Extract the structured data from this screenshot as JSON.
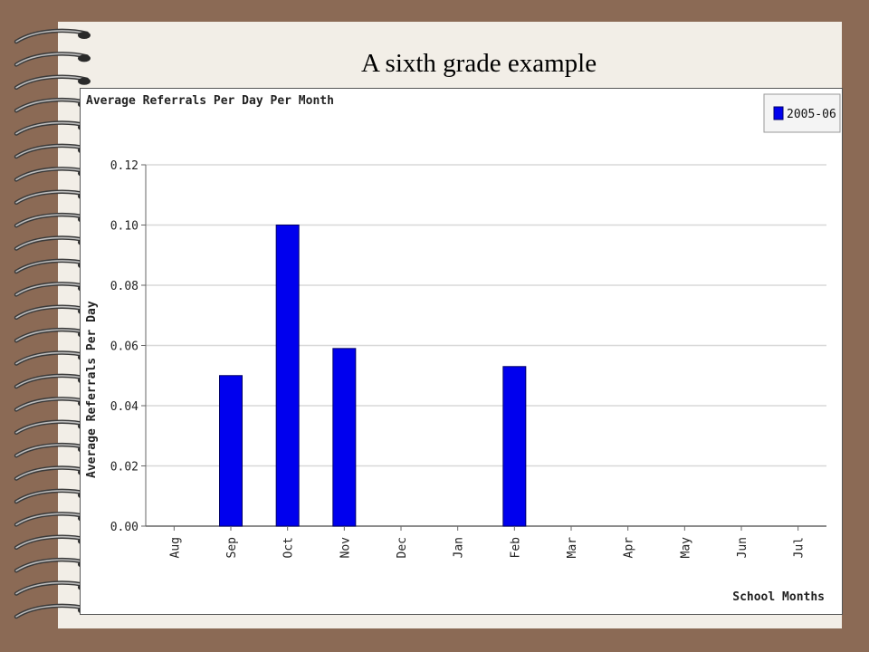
{
  "slide": {
    "title": "A sixth grade example"
  },
  "colors": {
    "bar": "#0000ee",
    "bar_stroke": "#000066",
    "grid": "#d8d8d8",
    "axis": "#666666"
  },
  "chart_data": {
    "type": "bar",
    "title": "Average Referrals Per Day Per Month",
    "xlabel": "School Months",
    "ylabel": "Average Referrals Per Day",
    "categories": [
      "Aug",
      "Sep",
      "Oct",
      "Nov",
      "Dec",
      "Jan",
      "Feb",
      "Mar",
      "Apr",
      "May",
      "Jun",
      "Jul"
    ],
    "series": [
      {
        "name": "2005-06",
        "values": [
          0,
          0.05,
          0.1,
          0.059,
          0,
          0,
          0.053,
          0,
          0,
          0,
          0,
          0
        ]
      }
    ],
    "ylim": [
      0,
      0.12
    ],
    "yticks": [
      "0.00",
      "0.02",
      "0.04",
      "0.06",
      "0.08",
      "0.10",
      "0.12"
    ],
    "grid": true,
    "legend": "top-right"
  }
}
